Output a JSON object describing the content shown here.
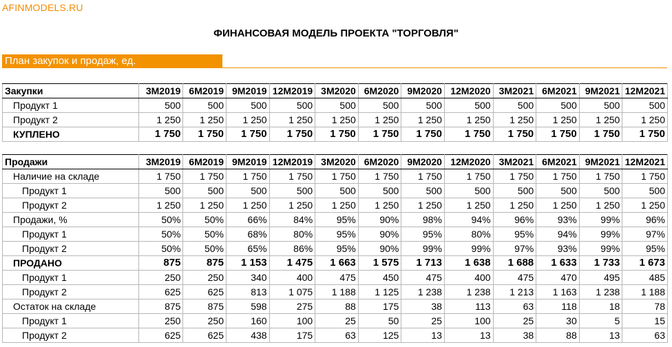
{
  "brand": "AFINMODELS.RU",
  "title": "ФИНАНСОВАЯ МОДЕЛЬ ПРОЕКТА \"ТОРГОВЛЯ\"",
  "section": "План закупок и продаж, ед.",
  "periods": [
    "3M2019",
    "6M2019",
    "9M2019",
    "12M2019",
    "3M2020",
    "6M2020",
    "9M2020",
    "12M2020",
    "3M2021",
    "6M2021",
    "9M2021",
    "12M2021"
  ],
  "purchases": {
    "header": "Закупки",
    "rows": [
      {
        "label": "Продукт 1",
        "indent": 1,
        "bold": false,
        "values": [
          "500",
          "500",
          "500",
          "500",
          "500",
          "500",
          "500",
          "500",
          "500",
          "500",
          "500",
          "500"
        ]
      },
      {
        "label": "Продукт 2",
        "indent": 1,
        "bold": false,
        "values": [
          "1 250",
          "1 250",
          "1 250",
          "1 250",
          "1 250",
          "1 250",
          "1 250",
          "1 250",
          "1 250",
          "1 250",
          "1 250",
          "1 250"
        ]
      },
      {
        "label": "КУПЛЕНО",
        "indent": 1,
        "bold": true,
        "values": [
          "1 750",
          "1 750",
          "1 750",
          "1 750",
          "1 750",
          "1 750",
          "1 750",
          "1 750",
          "1 750",
          "1 750",
          "1 750",
          "1 750"
        ]
      }
    ]
  },
  "sales": {
    "header": "Продажи",
    "rows": [
      {
        "label": "Наличие на складе",
        "indent": 1,
        "bold": false,
        "values": [
          "1 750",
          "1 750",
          "1 750",
          "1 750",
          "1 750",
          "1 750",
          "1 750",
          "1 750",
          "1 750",
          "1 750",
          "1 750",
          "1 750"
        ]
      },
      {
        "label": "Продукт 1",
        "indent": 2,
        "bold": false,
        "values": [
          "500",
          "500",
          "500",
          "500",
          "500",
          "500",
          "500",
          "500",
          "500",
          "500",
          "500",
          "500"
        ]
      },
      {
        "label": "Продукт 2",
        "indent": 2,
        "bold": false,
        "values": [
          "1 250",
          "1 250",
          "1 250",
          "1 250",
          "1 250",
          "1 250",
          "1 250",
          "1 250",
          "1 250",
          "1 250",
          "1 250",
          "1 250"
        ]
      },
      {
        "label": "Продажи, %",
        "indent": 1,
        "bold": false,
        "values": [
          "50%",
          "50%",
          "66%",
          "84%",
          "95%",
          "90%",
          "98%",
          "94%",
          "96%",
          "93%",
          "99%",
          "96%"
        ]
      },
      {
        "label": "Продукт 1",
        "indent": 2,
        "bold": false,
        "values": [
          "50%",
          "50%",
          "68%",
          "80%",
          "95%",
          "90%",
          "95%",
          "80%",
          "95%",
          "94%",
          "99%",
          "97%"
        ]
      },
      {
        "label": "Продукт 2",
        "indent": 2,
        "bold": false,
        "values": [
          "50%",
          "50%",
          "65%",
          "86%",
          "95%",
          "90%",
          "99%",
          "99%",
          "97%",
          "93%",
          "99%",
          "95%"
        ]
      },
      {
        "label": "ПРОДАНО",
        "indent": 1,
        "bold": true,
        "values": [
          "875",
          "875",
          "1 153",
          "1 475",
          "1 663",
          "1 575",
          "1 713",
          "1 638",
          "1 688",
          "1 633",
          "1 733",
          "1 673"
        ]
      },
      {
        "label": "Продукт 1",
        "indent": 2,
        "bold": false,
        "values": [
          "250",
          "250",
          "340",
          "400",
          "475",
          "450",
          "475",
          "400",
          "475",
          "470",
          "495",
          "485"
        ]
      },
      {
        "label": "Продукт 2",
        "indent": 2,
        "bold": false,
        "values": [
          "625",
          "625",
          "813",
          "1 075",
          "1 188",
          "1 125",
          "1 238",
          "1 238",
          "1 213",
          "1 163",
          "1 238",
          "1 188"
        ]
      },
      {
        "label": "Остаток на складе",
        "indent": 1,
        "bold": false,
        "values": [
          "875",
          "875",
          "598",
          "275",
          "88",
          "175",
          "38",
          "113",
          "63",
          "118",
          "18",
          "78"
        ]
      },
      {
        "label": "Продукт 1",
        "indent": 2,
        "bold": false,
        "values": [
          "250",
          "250",
          "160",
          "100",
          "25",
          "50",
          "25",
          "100",
          "25",
          "30",
          "5",
          "15"
        ]
      },
      {
        "label": "Продукт 2",
        "indent": 2,
        "bold": false,
        "values": [
          "625",
          "625",
          "438",
          "175",
          "63",
          "125",
          "13",
          "13",
          "38",
          "88",
          "13",
          "63"
        ]
      }
    ]
  }
}
